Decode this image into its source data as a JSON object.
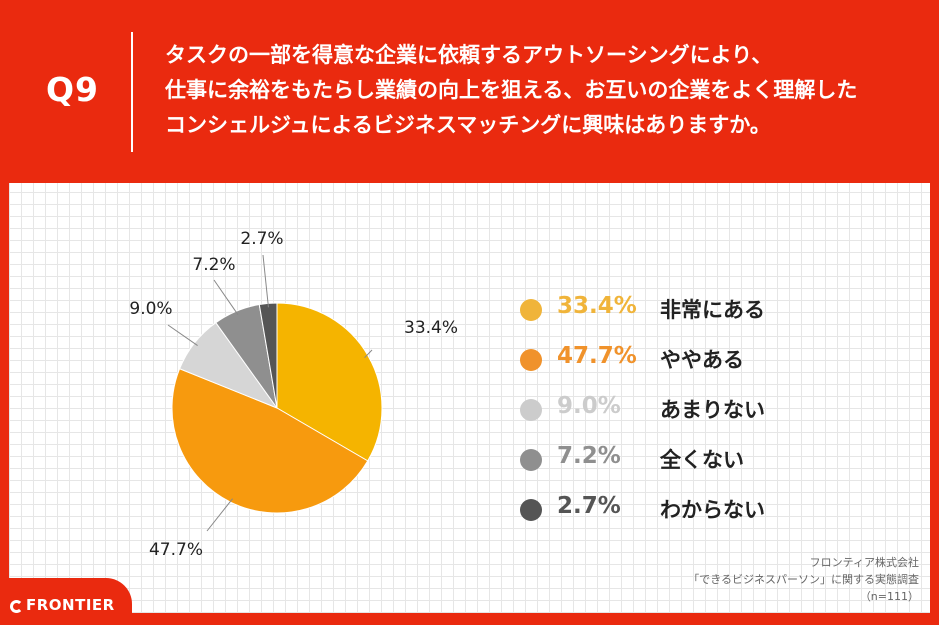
{
  "header": {
    "q_label": "Q9",
    "question_lines": [
      "タスクの一部を得意な企業に依頼するアウトソーシングにより、",
      "仕事に余裕をもたらし業績の向上を狙える、お互いの企業をよく理解した",
      "コンシェルジュによるビジネスマッチングに興味はありますか。"
    ]
  },
  "chart_data": {
    "type": "pie",
    "title": "",
    "slices": [
      {
        "label": "非常にある",
        "value": 33.4,
        "display": "33.4%",
        "color": "#f5b400"
      },
      {
        "label": "ややある",
        "value": 47.7,
        "display": "47.7%",
        "color": "#f79a0e"
      },
      {
        "label": "あまりない",
        "value": 9.0,
        "display": "9.0%",
        "color": "#d6d6d6"
      },
      {
        "label": "全くない",
        "value": 7.2,
        "display": "7.2%",
        "color": "#8f8f8f"
      },
      {
        "label": "わからない",
        "value": 2.7,
        "display": "2.7%",
        "color": "#555555"
      }
    ]
  },
  "legend": {
    "items": [
      {
        "pct": "33.4%",
        "label": "非常にある",
        "color": "#f0b43a"
      },
      {
        "pct": "47.7%",
        "label": "ややある",
        "color": "#f0922b"
      },
      {
        "pct": "9.0%",
        "label": "あまりない",
        "color": "#cccccc"
      },
      {
        "pct": "7.2%",
        "label": "全くない",
        "color": "#8f8f8f"
      },
      {
        "pct": "2.7%",
        "label": "わからない",
        "color": "#555555"
      }
    ]
  },
  "source": {
    "company": "フロンティア株式会社",
    "survey": "「できるビジネスパーソン」に関する実態調査",
    "sample": "（n=111）"
  },
  "logo": {
    "text": "FRONTIER"
  }
}
